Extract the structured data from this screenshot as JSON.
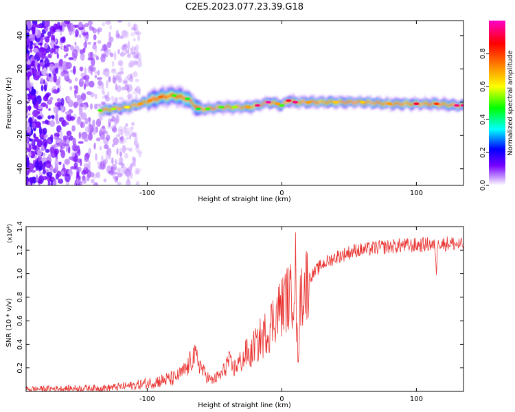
{
  "title": "C2E5.2023.077.23.39.G18",
  "chart_data": [
    {
      "type": "heatmap",
      "xlabel": "Height of straight line (km)",
      "ylabel": "Frequency (Hz)",
      "xlim": [
        -190,
        135
      ],
      "ylim": [
        -50,
        49
      ],
      "x_ticks": [
        -100,
        0,
        100
      ],
      "x_tick_labels": [
        "-100",
        "0",
        "100"
      ],
      "y_ticks": [
        -40,
        -20,
        0,
        20,
        40
      ],
      "y_tick_labels": [
        "-40",
        "-20",
        "0",
        "20",
        "40"
      ],
      "ridge": {
        "x": [
          -135,
          -125,
          -115,
          -105,
          -98,
          -90,
          -80,
          -70,
          -62,
          -55,
          -45,
          -35,
          -25,
          -18,
          -10,
          -3,
          0,
          5,
          10,
          20,
          40,
          60,
          80,
          100,
          115,
          130,
          135
        ],
        "freq": [
          -5,
          -4,
          -3,
          -1,
          1,
          3,
          4,
          2,
          -4,
          -4,
          -3,
          -3,
          -3,
          -2,
          0,
          -1,
          -2,
          1,
          0,
          0,
          0,
          0,
          -1,
          -1,
          -1,
          -2,
          -2
        ],
        "amplitude": [
          0.5,
          0.55,
          0.6,
          0.7,
          0.72,
          0.75,
          0.5,
          0.45,
          0.45,
          0.5,
          0.5,
          0.55,
          0.7,
          0.95,
          0.98,
          0.7,
          0.5,
          0.9,
          0.95,
          0.7,
          0.65,
          0.65,
          0.7,
          0.9,
          0.8,
          0.95,
          0.95
        ]
      },
      "noise_region": {
        "x_from": -190,
        "x_to": -120
      },
      "colorbar": {
        "label": "Normalized spectral amplitude",
        "range": [
          0.0,
          1.0
        ],
        "ticks": [
          0.0,
          0.2,
          0.4,
          0.6,
          0.8
        ],
        "tick_labels": [
          "0.0",
          "0.2",
          "0.4",
          "0.6",
          "0.8"
        ],
        "colors": [
          "#ffffff",
          "#7700ff",
          "#0000ff",
          "#00ffff",
          "#00ff00",
          "#ffff00",
          "#ff8000",
          "#ff0000",
          "#ff00c8"
        ]
      }
    },
    {
      "type": "line",
      "xlabel": "Height of straight line (km)",
      "ylabel": "SNR (10 * v/v)",
      "exponent_label": "(x10",
      "exponent_power": "4",
      "exponent_close": ")",
      "xlim": [
        -190,
        135
      ],
      "ylim": [
        0,
        14000
      ],
      "x_ticks": [
        -100,
        0,
        100
      ],
      "x_tick_labels": [
        "-100",
        "0",
        "100"
      ],
      "y_ticks": [
        2000,
        4000,
        6000,
        8000,
        10000,
        12000,
        14000
      ],
      "y_tick_labels": [
        "0.2",
        "0.4",
        "0.6",
        "0.8",
        "1.0",
        "1.2",
        "1.4"
      ],
      "color": "#e8312e",
      "series": [
        {
          "name": "SNR",
          "x": [
            -190,
            -160,
            -130,
            -110,
            -100,
            -90,
            -80,
            -75,
            -70,
            -66,
            -62,
            -58,
            -55,
            -52,
            -48,
            -44,
            -40,
            -36,
            -32,
            -28,
            -26,
            -24,
            -22,
            -20,
            -18,
            -16,
            -14,
            -12,
            -10,
            -8,
            -6,
            -4,
            -2,
            0,
            2,
            4,
            6,
            8,
            9,
            10,
            11,
            12,
            13,
            14,
            16,
            18,
            20,
            25,
            30,
            40,
            50,
            55,
            60,
            70,
            80,
            90,
            100,
            110,
            114,
            115,
            116,
            118,
            125,
            135
          ],
          "y": [
            200,
            250,
            300,
            500,
            700,
            900,
            1100,
            1500,
            2000,
            3000,
            2600,
            1600,
            1200,
            900,
            1200,
            1500,
            2600,
            1900,
            2400,
            2800,
            3400,
            2900,
            3300,
            4200,
            3800,
            4600,
            4400,
            5200,
            4900,
            5800,
            6200,
            6600,
            7000,
            7200,
            7600,
            8000,
            7800,
            8400,
            9000,
            11500,
            5200,
            3000,
            5500,
            8200,
            8600,
            9200,
            9600,
            10200,
            10800,
            11400,
            11800,
            12000,
            12000,
            12200,
            12300,
            12400,
            12400,
            12500,
            12300,
            9800,
            13200,
            12500,
            12600,
            12400
          ]
        }
      ]
    }
  ]
}
